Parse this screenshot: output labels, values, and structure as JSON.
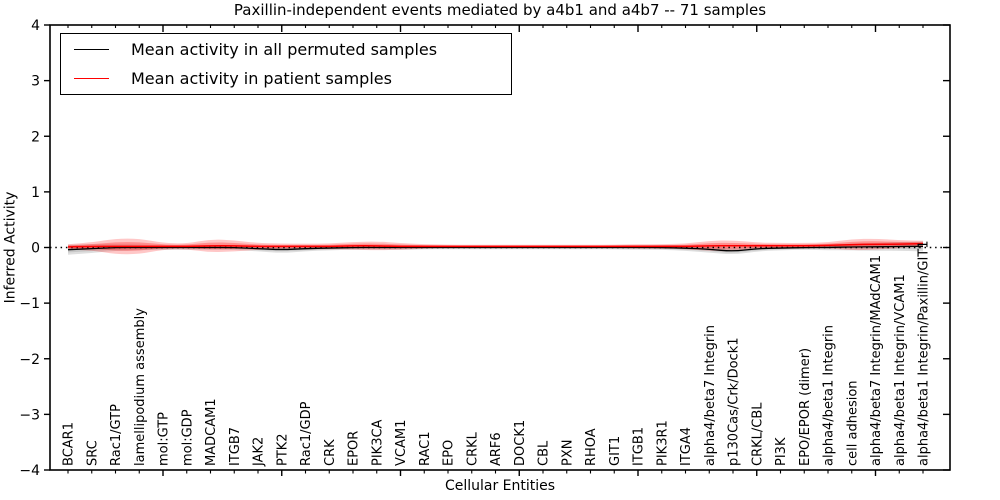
{
  "figure": {
    "title": "Paxillin-independent events mediated by a4b1 and a4b7 -- 71 samples",
    "xlabel": "Cellular Entities",
    "ylabel": "Inferred Activity"
  },
  "legend": {
    "position": "upper left",
    "items": [
      {
        "label": "Mean activity in all permuted samples",
        "color": "#000000"
      },
      {
        "label": "Mean activity in patient samples",
        "color": "#ff0000"
      }
    ]
  },
  "chart_data": {
    "type": "line",
    "subtype": "mean-lines-with-violin-bands",
    "title": "Paxillin-independent events mediated by a4b1 and a4b7 -- 71 samples",
    "xlabel": "Cellular Entities",
    "ylabel": "Inferred Activity",
    "ylim": [
      -4,
      4
    ],
    "yticks": [
      4,
      3,
      2,
      1,
      0,
      -1,
      -2,
      -3,
      -4
    ],
    "x_major_tick_every": 5,
    "grid": false,
    "legend_position": "upper left",
    "zero_reference_line": {
      "y": 0,
      "style": "dotted",
      "color": "#000000"
    },
    "categories": [
      "BCAR1",
      "SRC",
      "Rac1/GTP",
      "lamellipodium assembly",
      "mol:GTP",
      "mol:GDP",
      "MADCAM1",
      "ITGB7",
      "JAK2",
      "PTK2",
      "Rac1/GDP",
      "CRK",
      "EPOR",
      "PIK3CA",
      "VCAM1",
      "RAC1",
      "EPO",
      "CRKL",
      "ARF6",
      "DOCK1",
      "CBL",
      "PXN",
      "RHOA",
      "GIT1",
      "ITGB1",
      "PIK3R1",
      "ITGA4",
      "alpha4/beta7 Integrin",
      "p130Cas/Crk/Dock1",
      "CRKL/CBL",
      "PI3K",
      "EPO/EPOR (dimer)",
      "alpha4/beta1 Integrin",
      "cell adhesion",
      "alpha4/beta7 Integrin/MAdCAM1",
      "alpha4/beta1 Integrin/VCAM1",
      "alpha4/beta1 Integrin/Paxillin/GIT1"
    ],
    "series": [
      {
        "name": "Mean activity in all permuted samples",
        "line_color": "#000000",
        "band_color_outer": "rgba(0,0,0,0.13)",
        "band_color_inner": "rgba(0,0,0,0.10)",
        "mean": [
          -0.04,
          -0.02,
          0,
          0,
          0,
          0,
          0,
          0,
          -0.02,
          -0.04,
          -0.02,
          -0.01,
          0,
          0,
          0,
          0,
          0,
          0,
          0,
          0,
          0,
          0,
          0,
          0,
          0,
          0,
          -0.01,
          -0.03,
          -0.07,
          -0.02,
          -0.01,
          0,
          0,
          0.01,
          0.01,
          0.02,
          0.02
        ],
        "band_halfwidth": [
          0.09,
          0.08,
          0.06,
          0.05,
          0.04,
          0.04,
          0.04,
          0.04,
          0.05,
          0.06,
          0.05,
          0.04,
          0.04,
          0.04,
          0.04,
          0.035,
          0.03,
          0.03,
          0.03,
          0.03,
          0.03,
          0.03,
          0.03,
          0.035,
          0.04,
          0.04,
          0.05,
          0.06,
          0.06,
          0.05,
          0.04,
          0.04,
          0.05,
          0.06,
          0.07,
          0.08,
          0.09
        ]
      },
      {
        "name": "Mean activity in patient samples",
        "line_color": "#ff0000",
        "band_color_outer": "rgba(255,0,0,0.22)",
        "band_color_inner": "rgba(255,0,0,0.28)",
        "mean": [
          0.01,
          0.02,
          0.02,
          0.02,
          0.02,
          0.02,
          0.03,
          0.03,
          0.02,
          0.02,
          0.02,
          0.02,
          0.03,
          0.03,
          0.02,
          0.02,
          0.02,
          0.02,
          0.02,
          0.02,
          0.02,
          0.02,
          0.02,
          0.02,
          0.02,
          0.02,
          0.02,
          0.03,
          0.03,
          0.03,
          0.03,
          0.03,
          0.04,
          0.05,
          0.06,
          0.06,
          0.07
        ],
        "band_halfwidth": [
          0.05,
          0.07,
          0.14,
          0.14,
          0.06,
          0.05,
          0.12,
          0.1,
          0.06,
          0.05,
          0.05,
          0.05,
          0.07,
          0.08,
          0.06,
          0.04,
          0.03,
          0.03,
          0.03,
          0.03,
          0.03,
          0.03,
          0.03,
          0.03,
          0.04,
          0.04,
          0.05,
          0.09,
          0.1,
          0.06,
          0.05,
          0.05,
          0.05,
          0.1,
          0.1,
          0.07,
          0.05
        ]
      }
    ]
  }
}
